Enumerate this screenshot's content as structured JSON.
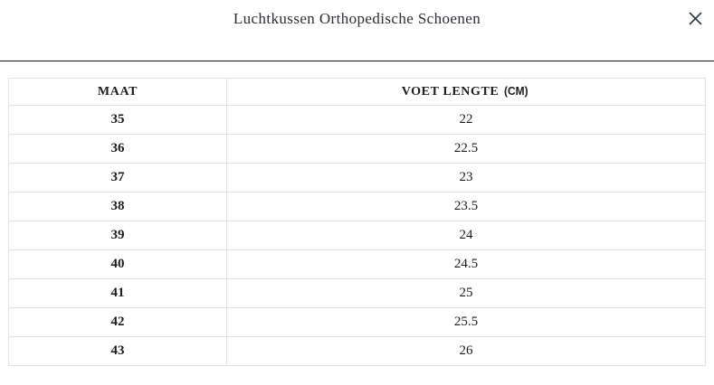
{
  "modal": {
    "title": "Luchtkussen Orthopedische Schoenen",
    "close_icon": "close-icon"
  },
  "table": {
    "columns": [
      {
        "label": "MAAT"
      },
      {
        "label": "VOET LENGTE",
        "unit": "(CM)"
      }
    ],
    "rows": [
      {
        "maat": "35",
        "voet_lengte_cm": "22"
      },
      {
        "maat": "36",
        "voet_lengte_cm": "22.5"
      },
      {
        "maat": "37",
        "voet_lengte_cm": "23"
      },
      {
        "maat": "38",
        "voet_lengte_cm": "23.5"
      },
      {
        "maat": "39",
        "voet_lengte_cm": "24"
      },
      {
        "maat": "40",
        "voet_lengte_cm": "24.5"
      },
      {
        "maat": "41",
        "voet_lengte_cm": "25"
      },
      {
        "maat": "42",
        "voet_lengte_cm": "25.5"
      },
      {
        "maat": "43",
        "voet_lengte_cm": "26"
      }
    ]
  },
  "colors": {
    "text": "#1b1c1c",
    "title": "#2b2e34",
    "table_border": "#e3e3e3",
    "header_divider": "#141414",
    "background": "#ffffff",
    "close_icon": "#2f3640"
  }
}
